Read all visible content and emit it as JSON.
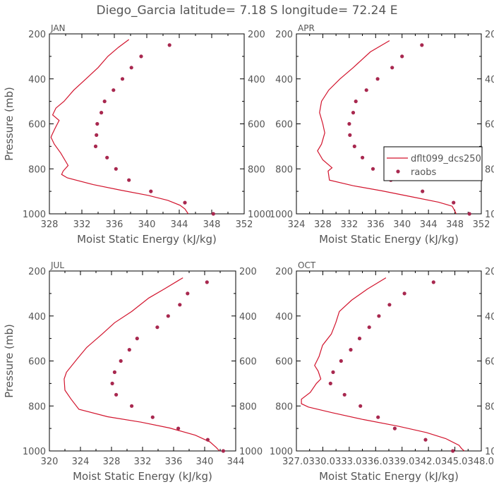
{
  "title": "Diego_Garcia  latitude= 7.18 S longitude= 72.24 E",
  "legend": {
    "line_label": "dflt099_dcs250",
    "dots_label": "raobs"
  },
  "colors": {
    "line": "#d2142d",
    "dots": "#a8284f"
  },
  "chart_data": [
    {
      "type": "line",
      "panel_label": "JAN",
      "xlabel": "Moist Static Energy (kJ/kg)",
      "ylabel": "Pressure (mb)",
      "xlim": [
        328,
        352
      ],
      "ylim": [
        1000,
        200
      ],
      "x_ticks": [
        "328",
        "332",
        "336",
        "340",
        "344",
        "348",
        "352"
      ],
      "y_ticks": [
        "200",
        "400",
        "600",
        "800",
        "1000"
      ],
      "series": [
        {
          "kind": "line",
          "points": [
            [
              337.8,
              225
            ],
            [
              336.5,
              260
            ],
            [
              335.2,
              300
            ],
            [
              334,
              350
            ],
            [
              332.5,
              400
            ],
            [
              331,
              450
            ],
            [
              329.8,
              500
            ],
            [
              328.8,
              530
            ],
            [
              328.4,
              560
            ],
            [
              329.2,
              585
            ],
            [
              328.7,
              620
            ],
            [
              328.3,
              650
            ],
            [
              328.2,
              660
            ],
            [
              328.6,
              690
            ],
            [
              329.4,
              730
            ],
            [
              330.3,
              785
            ],
            [
              329.7,
              810
            ],
            [
              329.5,
              825
            ],
            [
              330.2,
              840
            ],
            [
              333.4,
              870
            ],
            [
              336.8,
              895
            ],
            [
              340.2,
              918
            ],
            [
              342.6,
              940
            ],
            [
              344.1,
              962
            ],
            [
              344.7,
              978
            ],
            [
              345.1,
              1000
            ]
          ]
        },
        {
          "kind": "points",
          "points": [
            [
              342.8,
              250
            ],
            [
              339.3,
              300
            ],
            [
              338.1,
              350
            ],
            [
              337,
              400
            ],
            [
              335.9,
              450
            ],
            [
              334.8,
              500
            ],
            [
              334.4,
              550
            ],
            [
              333.9,
              600
            ],
            [
              333.8,
              650
            ],
            [
              333.7,
              700
            ],
            [
              335.1,
              750
            ],
            [
              336.2,
              800
            ],
            [
              337.8,
              850
            ],
            [
              340.5,
              900
            ],
            [
              344.7,
              950
            ],
            [
              348.2,
              1000
            ]
          ]
        }
      ]
    },
    {
      "type": "line",
      "panel_label": "APR",
      "xlabel": "Moist Static Energy (kJ/kg)",
      "ylabel": "",
      "xlim": [
        324,
        352
      ],
      "ylim": [
        1000,
        200
      ],
      "x_ticks": [
        "324",
        "328",
        "332",
        "336",
        "340",
        "344",
        "348",
        "352"
      ],
      "y_ticks": [
        "200",
        "400",
        "600",
        "800",
        "1000"
      ],
      "series": [
        {
          "kind": "line",
          "points": [
            [
              338.1,
              230
            ],
            [
              335.2,
              280
            ],
            [
              332.6,
              350
            ],
            [
              330.6,
              400
            ],
            [
              328.9,
              450
            ],
            [
              327.8,
              500
            ],
            [
              327.5,
              550
            ],
            [
              328,
              600
            ],
            [
              328.3,
              640
            ],
            [
              327.8,
              690
            ],
            [
              327.2,
              720
            ],
            [
              328,
              760
            ],
            [
              329.4,
              795
            ],
            [
              328.8,
              810
            ],
            [
              329,
              850
            ],
            [
              332.6,
              875
            ],
            [
              337,
              898
            ],
            [
              341.6,
              925
            ],
            [
              345.5,
              948
            ],
            [
              347.6,
              966
            ],
            [
              347.9,
              982
            ],
            [
              348.2,
              1000
            ]
          ]
        },
        {
          "kind": "points",
          "points": [
            [
              343,
              250
            ],
            [
              340,
              300
            ],
            [
              338.5,
              350
            ],
            [
              336.3,
              400
            ],
            [
              334.6,
              450
            ],
            [
              333,
              500
            ],
            [
              332.6,
              550
            ],
            [
              332,
              600
            ],
            [
              332.1,
              650
            ],
            [
              332.8,
              700
            ],
            [
              334,
              750
            ],
            [
              335.6,
              800
            ],
            [
              338.3,
              850
            ],
            [
              343.1,
              900
            ],
            [
              347.8,
              950
            ],
            [
              350.2,
              1000
            ]
          ]
        }
      ]
    },
    {
      "type": "line",
      "panel_label": "JUL",
      "xlabel": "Moist Static Energy (kJ/kg)",
      "ylabel": "Pressure (mb)",
      "xlim": [
        320,
        344
      ],
      "ylim": [
        1000,
        200
      ],
      "x_ticks": [
        "320",
        "324",
        "328",
        "332",
        "336",
        "340",
        "344"
      ],
      "y_ticks": [
        "200",
        "400",
        "600",
        "800",
        "1000"
      ],
      "series": [
        {
          "kind": "line",
          "points": [
            [
              337.2,
              230
            ],
            [
              334.8,
              280
            ],
            [
              332.8,
              320
            ],
            [
              330.6,
              380
            ],
            [
              328.4,
              430
            ],
            [
              326.8,
              480
            ],
            [
              324.8,
              540
            ],
            [
              323.6,
              590
            ],
            [
              322.2,
              650
            ],
            [
              321.9,
              680
            ],
            [
              322,
              730
            ],
            [
              322.8,
              770
            ],
            [
              323.8,
              815
            ],
            [
              327.5,
              848
            ],
            [
              331.8,
              872
            ],
            [
              335.5,
              898
            ],
            [
              338.8,
              930
            ],
            [
              340.7,
              960
            ],
            [
              341.5,
              985
            ],
            [
              341.9,
              1000
            ]
          ]
        },
        {
          "kind": "points",
          "points": [
            [
              340.3,
              250
            ],
            [
              337.8,
              300
            ],
            [
              336.8,
              350
            ],
            [
              335.3,
              400
            ],
            [
              333.9,
              450
            ],
            [
              331.3,
              500
            ],
            [
              330.3,
              550
            ],
            [
              329.2,
              600
            ],
            [
              328.4,
              650
            ],
            [
              328.1,
              700
            ],
            [
              328.6,
              750
            ],
            [
              330.6,
              800
            ],
            [
              333.3,
              850
            ],
            [
              336.6,
              900
            ],
            [
              340.4,
              950
            ],
            [
              342.4,
              1000
            ]
          ]
        }
      ]
    },
    {
      "type": "line",
      "panel_label": "OCT",
      "xlabel": "Moist Static Energy (kJ/kg)",
      "ylabel": "",
      "xlim": [
        327.03,
        348.03
      ],
      "ylim": [
        1000,
        200
      ],
      "x_ticks": [
        "327.0",
        "330.0",
        "333.0",
        "336.0",
        "339.0",
        "342.0",
        "345.0",
        "348.0"
      ],
      "x_tick_labels_overlapping": "327.0330.0333.0336.0339.0342.0345.0348.0",
      "y_ticks": [
        "200",
        "400",
        "600",
        "800",
        "1000"
      ],
      "series": [
        {
          "kind": "line",
          "points": [
            [
              337.2,
              230
            ],
            [
              335.1,
              280
            ],
            [
              333.3,
              330
            ],
            [
              331.9,
              380
            ],
            [
              331.5,
              430
            ],
            [
              331,
              480
            ],
            [
              330,
              530
            ],
            [
              329.6,
              580
            ],
            [
              329.1,
              620
            ],
            [
              329.5,
              645
            ],
            [
              329.8,
              680
            ],
            [
              329.3,
              700
            ],
            [
              328.6,
              740
            ],
            [
              327.6,
              770
            ],
            [
              327.6,
              790
            ],
            [
              328.4,
              805
            ],
            [
              331.1,
              830
            ],
            [
              334.6,
              860
            ],
            [
              338.6,
              890
            ],
            [
              341.8,
              918
            ],
            [
              344,
              945
            ],
            [
              345.5,
              975
            ],
            [
              345.8,
              990
            ],
            [
              346.1,
              1000
            ]
          ]
        },
        {
          "kind": "points",
          "points": [
            [
              342.6,
              250
            ],
            [
              339.3,
              300
            ],
            [
              337.6,
              350
            ],
            [
              336.4,
              400
            ],
            [
              335.3,
              450
            ],
            [
              334.2,
              500
            ],
            [
              333.2,
              550
            ],
            [
              332.1,
              600
            ],
            [
              331.2,
              650
            ],
            [
              330.9,
              700
            ],
            [
              332.5,
              750
            ],
            [
              334.3,
              800
            ],
            [
              336.3,
              850
            ],
            [
              338.2,
              900
            ],
            [
              341.7,
              950
            ],
            [
              344.8,
              1000
            ]
          ]
        }
      ]
    }
  ]
}
